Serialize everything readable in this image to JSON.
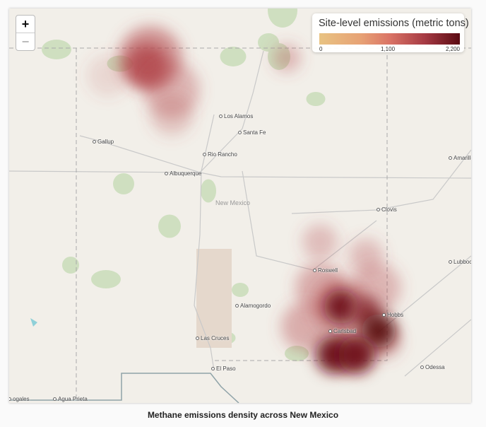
{
  "map": {
    "zoom_in_label": "+",
    "zoom_out_label": "−",
    "state_label": "New Mexico",
    "cities": [
      "Los Alamos",
      "Santa Fe",
      "Gallup",
      "Rio Rancho",
      "Albuquerque",
      "Clovis",
      "Amarillo",
      "Roswell",
      "Lubbock",
      "Alamogordo",
      "Hobbs",
      "Carlsbad",
      "Las Cruces",
      "El Paso",
      "Odessa",
      "ogales",
      "Agua Prieta"
    ]
  },
  "legend": {
    "title": "Site-level emissions (metric tons)",
    "ticks": [
      "0",
      "1,100",
      "2,200"
    ],
    "colors": [
      "#e8c382",
      "#da7466",
      "#5a0a12"
    ]
  },
  "caption": "Methane emissions density across New Mexico"
}
